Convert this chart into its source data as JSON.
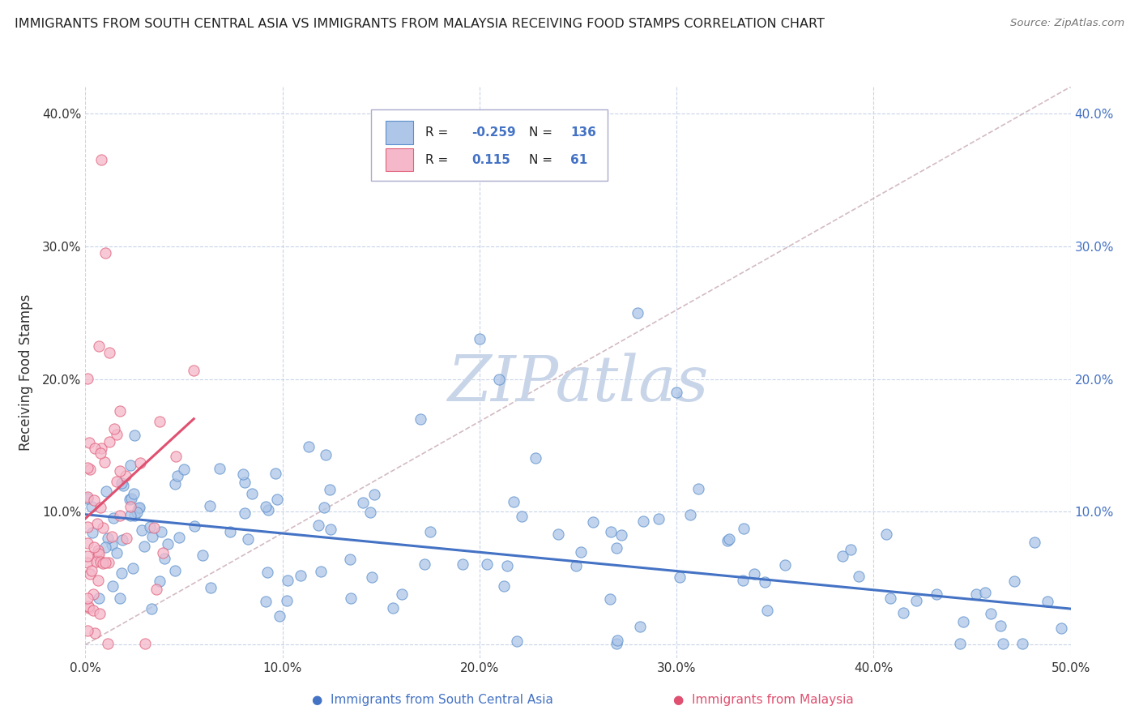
{
  "title": "IMMIGRANTS FROM SOUTH CENTRAL ASIA VS IMMIGRANTS FROM MALAYSIA RECEIVING FOOD STAMPS CORRELATION CHART",
  "source": "Source: ZipAtlas.com",
  "ylabel": "Receiving Food Stamps",
  "xlim": [
    0.0,
    0.5
  ],
  "ylim": [
    -0.01,
    0.42
  ],
  "xticks": [
    0.0,
    0.1,
    0.2,
    0.3,
    0.4,
    0.5
  ],
  "xticklabels": [
    "0.0%",
    "10.0%",
    "20.0%",
    "30.0%",
    "40.0%",
    "50.0%"
  ],
  "yticks": [
    0.0,
    0.1,
    0.2,
    0.3,
    0.4
  ],
  "yticklabels": [
    "",
    "10.0%",
    "20.0%",
    "30.0%",
    "40.0%"
  ],
  "right_yticks": [
    0.1,
    0.2,
    0.3,
    0.4
  ],
  "right_yticklabels": [
    "10.0%",
    "20.0%",
    "30.0%",
    "40.0%"
  ],
  "blue_R": -0.259,
  "blue_N": 136,
  "pink_R": 0.115,
  "pink_N": 61,
  "blue_color": "#aec6e8",
  "blue_edge_color": "#5b8fcc",
  "blue_line_color": "#4472c4",
  "pink_color": "#f5b8ca",
  "pink_edge_color": "#e0607a",
  "pink_line_color": "#e05070",
  "diag_line_color": "#c8aab4",
  "background_color": "#ffffff",
  "grid_color": "#c8d4e8",
  "watermark_color": "#c8d4e8",
  "text_color": "#333333",
  "legend_label_blue": "Immigrants from South Central Asia",
  "legend_label_pink": "Immigrants from Malaysia"
}
